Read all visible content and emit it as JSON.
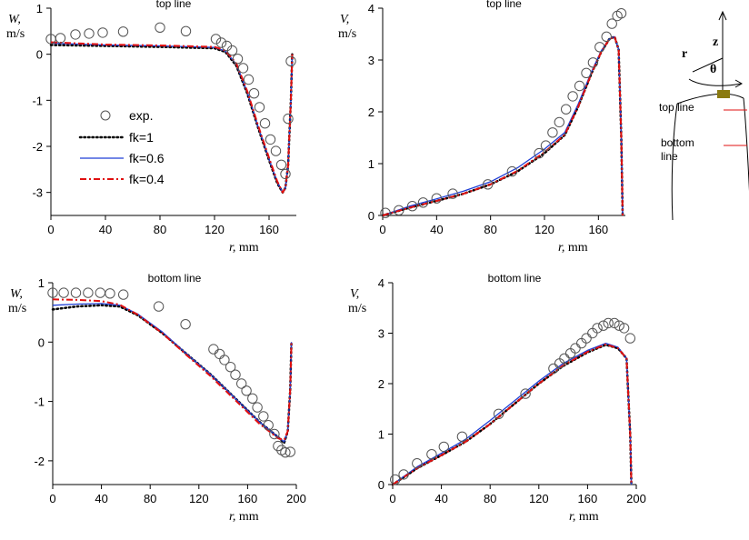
{
  "legend": {
    "items": [
      {
        "label": "exp.",
        "style": "circle",
        "color": "#555555"
      },
      {
        "label": "fk=1",
        "style": "dotted",
        "color": "#000000"
      },
      {
        "label": "fk=0.6",
        "style": "solid",
        "color": "#1f3fd6"
      },
      {
        "label": "fk=0.4",
        "style": "dashdot",
        "color": "#e01010"
      }
    ]
  },
  "schematic": {
    "axis_z": "z",
    "axis_r": "r",
    "angle": "θ",
    "top_line": "top line",
    "bottom_line_1": "bottom",
    "bottom_line_2": "line",
    "marker_color": "#e01010",
    "nozzle_color": "#8a7a10"
  },
  "chart_data": [
    {
      "type": "line",
      "title": "top line",
      "ylabel_var": "W,",
      "ylabel_unit": "m/s",
      "xlabel_var": "r,",
      "xlabel_unit": " mm",
      "xlim": [
        0,
        180
      ],
      "ylim": [
        -3.5,
        1
      ],
      "xticks": [
        0,
        40,
        80,
        120,
        160
      ],
      "yticks": [
        -3,
        -2,
        -1,
        0,
        1
      ],
      "exp": {
        "x": [
          0,
          7,
          18,
          28,
          38,
          53,
          80,
          99,
          121,
          125,
          129,
          133,
          137,
          141,
          145,
          149,
          153,
          157,
          161,
          165,
          169,
          172,
          174,
          176
        ],
        "y": [
          0.33,
          0.35,
          0.43,
          0.45,
          0.47,
          0.49,
          0.58,
          0.5,
          0.33,
          0.25,
          0.18,
          0.08,
          -0.1,
          -0.3,
          -0.55,
          -0.85,
          -1.15,
          -1.5,
          -1.85,
          -2.1,
          -2.4,
          -2.6,
          -1.4,
          -0.15
        ]
      },
      "series": [
        {
          "name": "fk=1",
          "x": [
            0,
            40,
            80,
            120,
            128,
            136,
            144,
            152,
            160,
            166,
            170,
            172,
            174,
            176,
            177
          ],
          "y": [
            0.2,
            0.18,
            0.16,
            0.13,
            0.05,
            -0.25,
            -0.85,
            -1.6,
            -2.3,
            -2.8,
            -3.0,
            -2.9,
            -2.4,
            -1.0,
            0.0
          ]
        },
        {
          "name": "fk=0.6",
          "x": [
            0,
            40,
            80,
            120,
            128,
            136,
            144,
            152,
            160,
            166,
            170,
            172,
            174,
            176,
            177
          ],
          "y": [
            0.24,
            0.2,
            0.18,
            0.15,
            0.07,
            -0.22,
            -0.82,
            -1.58,
            -2.28,
            -2.78,
            -3.0,
            -2.9,
            -2.4,
            -1.0,
            0.0
          ]
        },
        {
          "name": "fk=0.4",
          "x": [
            0,
            40,
            80,
            120,
            128,
            136,
            144,
            152,
            160,
            166,
            170,
            172,
            174,
            176,
            177
          ],
          "y": [
            0.26,
            0.21,
            0.19,
            0.16,
            0.08,
            -0.2,
            -0.8,
            -1.55,
            -2.25,
            -2.76,
            -3.0,
            -2.9,
            -2.4,
            -1.0,
            0.0
          ]
        }
      ]
    },
    {
      "type": "line",
      "title": "top line",
      "ylabel_var": "V,",
      "ylabel_unit": "m/s",
      "xlabel_var": "r,",
      "xlabel_unit": " mm",
      "xlim": [
        0,
        180
      ],
      "ylim": [
        0,
        4
      ],
      "xticks": [
        0,
        40,
        80,
        120,
        160
      ],
      "yticks": [
        0,
        1,
        2,
        3,
        4
      ],
      "exp": {
        "x": [
          2,
          12,
          22,
          30,
          40,
          52,
          78,
          96,
          116,
          121,
          126,
          131,
          136,
          141,
          146,
          151,
          156,
          161,
          166,
          170,
          174,
          177
        ],
        "y": [
          0.05,
          0.1,
          0.18,
          0.25,
          0.33,
          0.42,
          0.6,
          0.85,
          1.2,
          1.35,
          1.6,
          1.8,
          2.05,
          2.3,
          2.5,
          2.75,
          2.95,
          3.25,
          3.45,
          3.7,
          3.85,
          3.9
        ]
      },
      "series": [
        {
          "name": "fk=1",
          "x": [
            0,
            20,
            40,
            60,
            80,
            100,
            120,
            135,
            145,
            155,
            162,
            168,
            172,
            175,
            177,
            178
          ],
          "y": [
            0.0,
            0.15,
            0.28,
            0.42,
            0.6,
            0.85,
            1.2,
            1.55,
            2.1,
            2.75,
            3.15,
            3.4,
            3.45,
            3.2,
            1.5,
            0.0
          ]
        },
        {
          "name": "fk=0.6",
          "x": [
            0,
            20,
            40,
            60,
            80,
            100,
            120,
            135,
            145,
            155,
            162,
            168,
            172,
            175,
            177,
            178
          ],
          "y": [
            0.0,
            0.18,
            0.32,
            0.47,
            0.65,
            0.92,
            1.28,
            1.6,
            2.15,
            2.78,
            3.17,
            3.4,
            3.45,
            3.2,
            1.5,
            0.0
          ]
        },
        {
          "name": "fk=0.4",
          "x": [
            0,
            20,
            40,
            60,
            80,
            100,
            120,
            135,
            145,
            155,
            162,
            168,
            172,
            175,
            177,
            178
          ],
          "y": [
            0.0,
            0.15,
            0.28,
            0.42,
            0.6,
            0.86,
            1.22,
            1.56,
            2.1,
            2.75,
            3.15,
            3.4,
            3.45,
            3.2,
            1.5,
            0.0
          ]
        }
      ]
    },
    {
      "type": "line",
      "title": "bottom line",
      "ylabel_var": "W,",
      "ylabel_unit": "m/s",
      "xlabel_var": "r,",
      "xlabel_unit": " mm",
      "xlim": [
        0,
        200
      ],
      "ylim": [
        -2.4,
        1
      ],
      "xticks": [
        0,
        40,
        80,
        120,
        160,
        200
      ],
      "yticks": [
        -2,
        -1,
        0,
        1
      ],
      "exp": {
        "x": [
          0,
          9,
          19,
          29,
          39,
          47,
          58,
          87,
          109,
          132,
          137,
          141,
          146,
          150,
          155,
          159,
          164,
          168,
          173,
          177,
          182,
          185,
          188,
          191,
          195
        ],
        "y": [
          0.83,
          0.83,
          0.83,
          0.83,
          0.83,
          0.82,
          0.8,
          0.6,
          0.3,
          -0.12,
          -0.2,
          -0.3,
          -0.42,
          -0.55,
          -0.7,
          -0.82,
          -0.95,
          -1.1,
          -1.25,
          -1.4,
          -1.55,
          -1.75,
          -1.82,
          -1.86,
          -1.85
        ]
      },
      "series": [
        {
          "name": "fk=1",
          "x": [
            0,
            20,
            40,
            55,
            70,
            90,
            110,
            130,
            150,
            170,
            185,
            190,
            193,
            195,
            196
          ],
          "y": [
            0.55,
            0.6,
            0.62,
            0.6,
            0.45,
            0.15,
            -0.2,
            -0.55,
            -0.95,
            -1.35,
            -1.6,
            -1.7,
            -1.5,
            -0.8,
            0.0
          ]
        },
        {
          "name": "fk=0.6",
          "x": [
            0,
            20,
            40,
            55,
            70,
            90,
            110,
            130,
            150,
            170,
            185,
            190,
            193,
            195,
            196
          ],
          "y": [
            0.62,
            0.64,
            0.65,
            0.62,
            0.47,
            0.17,
            -0.2,
            -0.55,
            -0.95,
            -1.35,
            -1.6,
            -1.68,
            -1.5,
            -0.8,
            0.0
          ]
        },
        {
          "name": "fk=0.4",
          "x": [
            0,
            20,
            40,
            55,
            70,
            90,
            110,
            130,
            150,
            170,
            185,
            190,
            193,
            195,
            196
          ],
          "y": [
            0.72,
            0.71,
            0.69,
            0.63,
            0.46,
            0.15,
            -0.22,
            -0.58,
            -0.98,
            -1.38,
            -1.62,
            -1.65,
            -1.5,
            -0.8,
            0.0
          ]
        }
      ]
    },
    {
      "type": "line",
      "title": "bottom line",
      "ylabel_var": "V,",
      "ylabel_unit": "m/s",
      "xlabel_var": "r,",
      "xlabel_unit": " mm",
      "xlim": [
        0,
        200
      ],
      "ylim": [
        0,
        4
      ],
      "xticks": [
        0,
        40,
        80,
        120,
        160,
        200
      ],
      "yticks": [
        0,
        1,
        2,
        3,
        4
      ],
      "exp": {
        "x": [
          2,
          9,
          20,
          32,
          42,
          57,
          87,
          109,
          132,
          137,
          141,
          146,
          150,
          155,
          159,
          164,
          168,
          173,
          177,
          182,
          186,
          190,
          195
        ],
        "y": [
          0.1,
          0.2,
          0.42,
          0.6,
          0.75,
          0.95,
          1.4,
          1.8,
          2.3,
          2.4,
          2.5,
          2.6,
          2.7,
          2.8,
          2.9,
          3.0,
          3.1,
          3.15,
          3.2,
          3.2,
          3.15,
          3.1,
          2.9
        ]
      },
      "series": [
        {
          "name": "fk=1",
          "x": [
            0,
            20,
            40,
            60,
            80,
            100,
            120,
            140,
            160,
            175,
            185,
            192,
            195,
            196
          ],
          "y": [
            0.0,
            0.32,
            0.58,
            0.85,
            1.2,
            1.6,
            2.0,
            2.35,
            2.62,
            2.77,
            2.7,
            2.5,
            1.0,
            0.0
          ]
        },
        {
          "name": "fk=0.6",
          "x": [
            0,
            20,
            40,
            60,
            80,
            100,
            120,
            140,
            160,
            175,
            185,
            192,
            195,
            196
          ],
          "y": [
            0.0,
            0.35,
            0.62,
            0.9,
            1.27,
            1.66,
            2.05,
            2.4,
            2.66,
            2.8,
            2.72,
            2.5,
            1.0,
            0.0
          ]
        },
        {
          "name": "fk=0.4",
          "x": [
            0,
            20,
            40,
            60,
            80,
            100,
            120,
            140,
            160,
            175,
            185,
            192,
            195,
            196
          ],
          "y": [
            0.0,
            0.32,
            0.58,
            0.85,
            1.2,
            1.6,
            2.0,
            2.36,
            2.63,
            2.78,
            2.7,
            2.5,
            1.0,
            0.0
          ]
        }
      ]
    }
  ]
}
